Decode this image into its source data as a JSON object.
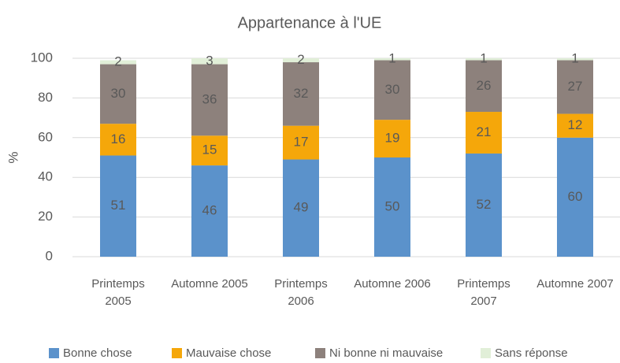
{
  "chart_data": {
    "type": "stacked_bar",
    "title": "Appartenance à l'UE",
    "y_label": "%",
    "categories": [
      "Printemps 2005",
      "Automne 2005",
      "Printemps 2006",
      "Automne 2006",
      "Printemps 2007",
      "Automne 2007"
    ],
    "series": [
      {
        "name": "Bonne chose",
        "color": "#5b92cb",
        "values": [
          51,
          46,
          49,
          50,
          52,
          60
        ]
      },
      {
        "name": "Mauvaise chose",
        "color": "#f5a70a",
        "values": [
          16,
          15,
          17,
          19,
          21,
          12
        ]
      },
      {
        "name": "Ni bonne ni mauvaise",
        "color": "#8d817c",
        "values": [
          30,
          36,
          32,
          30,
          26,
          27
        ]
      },
      {
        "name": "Sans réponse",
        "color": "#e1efd8",
        "values": [
          2,
          3,
          2,
          1,
          1,
          1
        ]
      }
    ],
    "ylim": [
      0,
      100
    ],
    "yticks": [
      0,
      20,
      40,
      60,
      80,
      100
    ],
    "grid": true
  }
}
